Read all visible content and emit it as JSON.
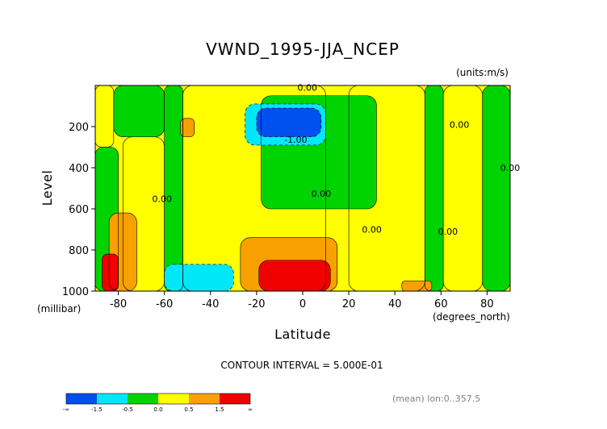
{
  "chart_data": {
    "type": "heatmap",
    "title": "VWND_1995-JJA_NCEP",
    "units": "(units:m/s)",
    "xlabel": "Latitude",
    "xunits": "(degrees_north)",
    "ylabel": "Level",
    "yunits": "(millibar)",
    "xlim": [
      -90,
      90
    ],
    "ylim": [
      1000,
      0
    ],
    "xticks": [
      -80,
      -60,
      -40,
      -20,
      0,
      20,
      40,
      60,
      80
    ],
    "xtick_labels": [
      "-80",
      "-60",
      "-40",
      "-20",
      "0",
      "20",
      "40",
      "60",
      "80"
    ],
    "yticks": [
      200,
      400,
      600,
      800,
      1000
    ],
    "ytick_labels": [
      "200",
      "400",
      "600",
      "800",
      "1000"
    ],
    "contour_interval_text": "CONTOUR INTERVAL = 5.000E-01",
    "contour_labels": [
      {
        "text": "0.00",
        "x": 2,
        "y": 10
      },
      {
        "text": "-1.00",
        "x": -3,
        "y": 262
      },
      {
        "text": "0.00",
        "x": 68,
        "y": 190
      },
      {
        "text": "0.00",
        "x": 90,
        "y": 400
      },
      {
        "text": "0.00",
        "x": -61,
        "y": 550
      },
      {
        "text": "0.00",
        "x": 8,
        "y": 525
      },
      {
        "text": "0.00",
        "x": 30,
        "y": 700
      },
      {
        "text": "0.00",
        "x": 63,
        "y": 710
      }
    ],
    "legend": {
      "colors": [
        "#0050f0",
        "#00e8f8",
        "#00d400",
        "#ffff00",
        "#f8a000",
        "#f00000"
      ],
      "labels": [
        "-∞",
        "-1.5",
        "-0.5",
        "0.0",
        "0.5",
        "1.5",
        "∞"
      ]
    },
    "regions": [
      {
        "level": "positive",
        "x": [
          -90,
          -82
        ],
        "y": [
          0,
          300
        ]
      },
      {
        "level": "positive",
        "x": [
          -78,
          -60
        ],
        "y": [
          250,
          1000
        ]
      },
      {
        "level": "positive",
        "x": [
          -52,
          10
        ],
        "y": [
          0,
          1000
        ]
      },
      {
        "level": "positive",
        "x": [
          20,
          53
        ],
        "y": [
          0,
          1000
        ]
      },
      {
        "level": "positive",
        "x": [
          61,
          78
        ],
        "y": [
          0,
          1000
        ]
      },
      {
        "level": "zero",
        "x": [
          -90,
          -80
        ],
        "y": [
          300,
          1000
        ]
      },
      {
        "level": "zero",
        "x": [
          -82,
          -60
        ],
        "y": [
          0,
          250
        ]
      },
      {
        "level": "zero",
        "x": [
          -60,
          -52
        ],
        "y": [
          0,
          1000
        ]
      },
      {
        "level": "zero",
        "x": [
          -18,
          32
        ],
        "y": [
          50,
          600
        ]
      },
      {
        "level": "zero",
        "x": [
          53,
          61
        ],
        "y": [
          0,
          1000
        ]
      },
      {
        "level": "zero",
        "x": [
          78,
          90
        ],
        "y": [
          0,
          1000
        ]
      },
      {
        "level": "neg_mid",
        "x": [
          -25,
          10
        ],
        "y": [
          90,
          290
        ]
      },
      {
        "level": "neg_strong",
        "x": [
          -20,
          8
        ],
        "y": [
          110,
          250
        ]
      },
      {
        "level": "neg_mid",
        "x": [
          -60,
          -30
        ],
        "y": [
          870,
          1000
        ]
      },
      {
        "level": "pos_mid",
        "x": [
          -84,
          -72
        ],
        "y": [
          620,
          1000
        ]
      },
      {
        "level": "pos_strong",
        "x": [
          -87,
          -80
        ],
        "y": [
          820,
          1000
        ]
      },
      {
        "level": "pos_mid",
        "x": [
          -27,
          15
        ],
        "y": [
          740,
          1000
        ]
      },
      {
        "level": "pos_strong",
        "x": [
          -19,
          12
        ],
        "y": [
          850,
          1000
        ]
      },
      {
        "level": "pos_mid",
        "x": [
          -53,
          -47
        ],
        "y": [
          160,
          250
        ]
      },
      {
        "level": "pos_mid",
        "x": [
          43,
          56
        ],
        "y": [
          950,
          1000
        ]
      }
    ]
  },
  "footer": {
    "mean_text": "(mean) lon:0..357.5"
  }
}
